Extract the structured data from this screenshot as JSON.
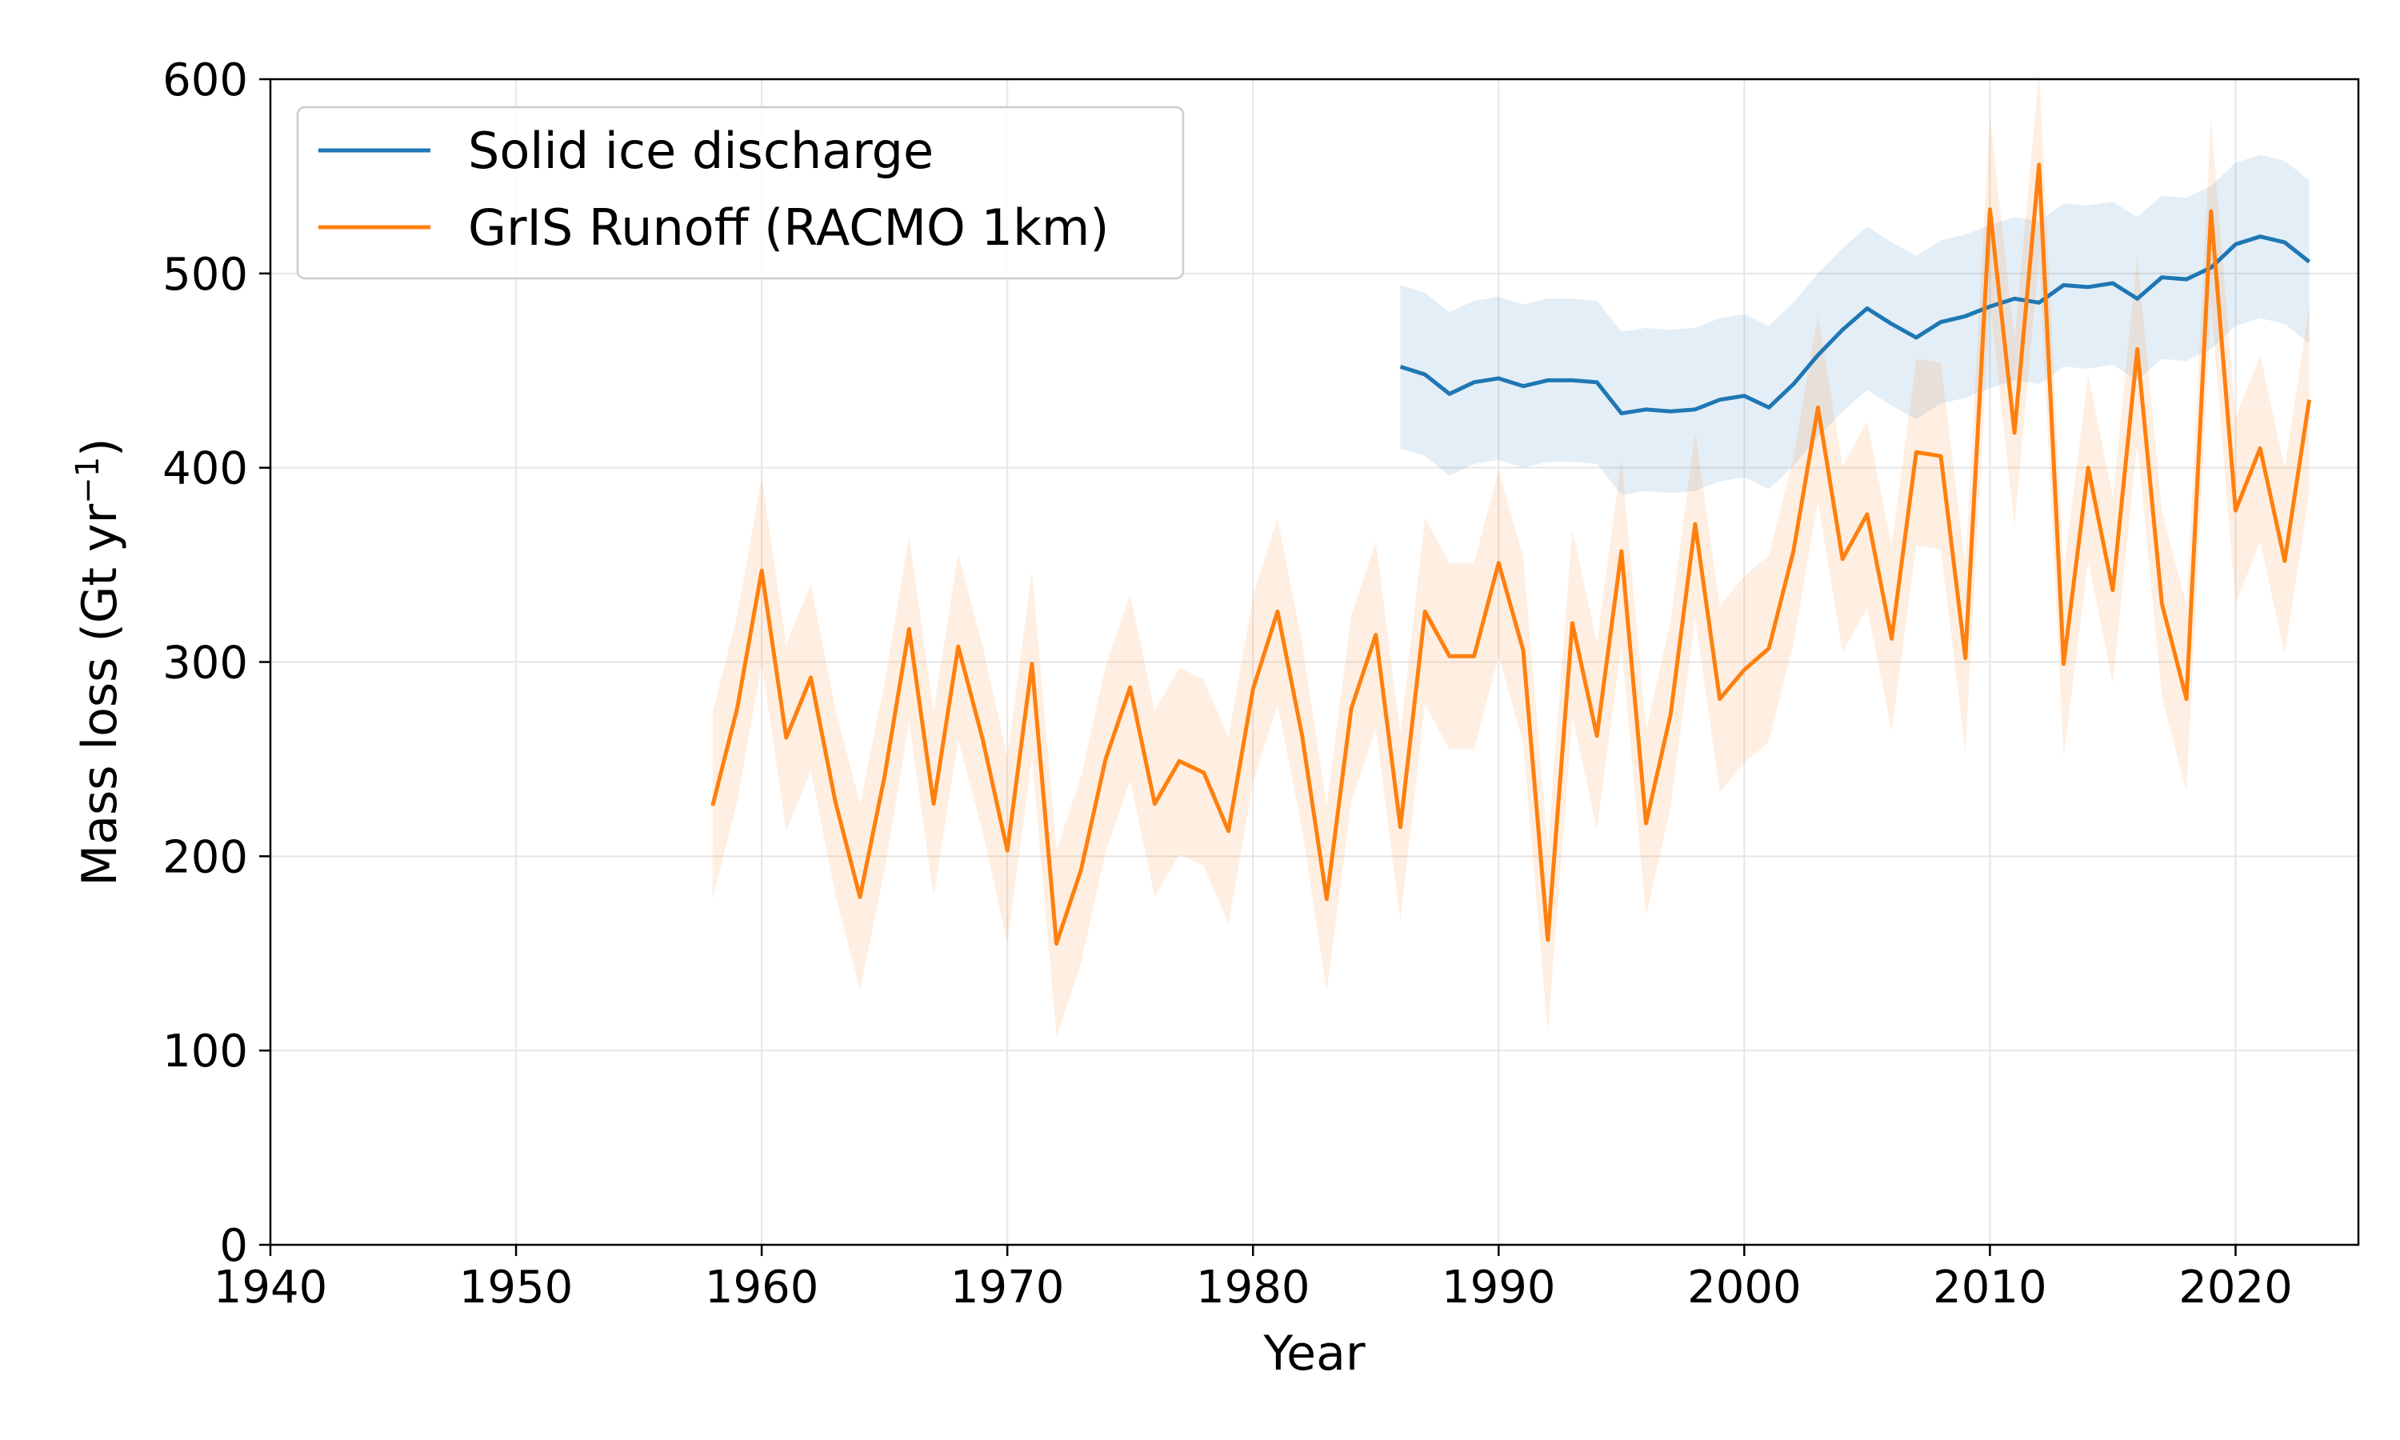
{
  "chart_data": {
    "type": "line",
    "xlabel": "Year",
    "ylabel": "Mass loss (Gt yr",
    "ylabel_sup": "−1",
    "ylabel_close": ")",
    "xlim": [
      1940,
      2025
    ],
    "ylim": [
      0,
      600
    ],
    "xticks": [
      1940,
      1950,
      1960,
      1970,
      1980,
      1990,
      2000,
      2010,
      2020
    ],
    "yticks": [
      0,
      100,
      200,
      300,
      400,
      500,
      600
    ],
    "grid": true,
    "legend_position": "top-left",
    "series": [
      {
        "name": "Solid ice discharge",
        "color": "#1f77b4",
        "x": [
          1986,
          1987,
          1988,
          1989,
          1990,
          1991,
          1992,
          1993,
          1994,
          1995,
          1996,
          1997,
          1998,
          1999,
          2000,
          2001,
          2002,
          2003,
          2004,
          2005,
          2006,
          2007,
          2008,
          2009,
          2010,
          2011,
          2012,
          2013,
          2014,
          2015,
          2016,
          2017,
          2018,
          2019,
          2020,
          2021,
          2022,
          2023
        ],
        "y": [
          452,
          448,
          438,
          444,
          446,
          442,
          445,
          445,
          444,
          428,
          430,
          429,
          430,
          435,
          437,
          431,
          443,
          458,
          471,
          482,
          474,
          467,
          475,
          478,
          483,
          487,
          485,
          494,
          493,
          495,
          487,
          498,
          497,
          503,
          515,
          519,
          516,
          506
        ],
        "band": 42
      },
      {
        "name": "GrIS Runoff (RACMO 1km)",
        "color": "#ff7f0e",
        "x": [
          1958,
          1959,
          1960,
          1961,
          1962,
          1963,
          1964,
          1965,
          1966,
          1967,
          1968,
          1969,
          1970,
          1971,
          1972,
          1973,
          1974,
          1975,
          1976,
          1977,
          1978,
          1979,
          1980,
          1981,
          1982,
          1983,
          1984,
          1985,
          1986,
          1987,
          1988,
          1989,
          1990,
          1991,
          1992,
          1993,
          1994,
          1995,
          1996,
          1997,
          1998,
          1999,
          2000,
          2001,
          2002,
          2003,
          2004,
          2005,
          2006,
          2007,
          2008,
          2009,
          2010,
          2011,
          2012,
          2013,
          2014,
          2015,
          2016,
          2017,
          2018,
          2019,
          2020,
          2021,
          2022,
          2023
        ],
        "y": [
          226,
          276,
          347,
          261,
          292,
          228,
          179,
          241,
          317,
          227,
          308,
          260,
          203,
          299,
          155,
          193,
          250,
          287,
          227,
          249,
          243,
          213,
          286,
          326,
          262,
          178,
          276,
          314,
          215,
          326,
          303,
          303,
          351,
          306,
          157,
          320,
          262,
          357,
          217,
          273,
          371,
          281,
          296,
          307,
          357,
          431,
          353,
          376,
          312,
          408,
          406,
          302,
          533,
          418,
          556,
          299,
          400,
          337,
          461,
          330,
          281,
          532,
          378,
          410,
          352,
          435
        ],
        "band": 48
      }
    ]
  }
}
